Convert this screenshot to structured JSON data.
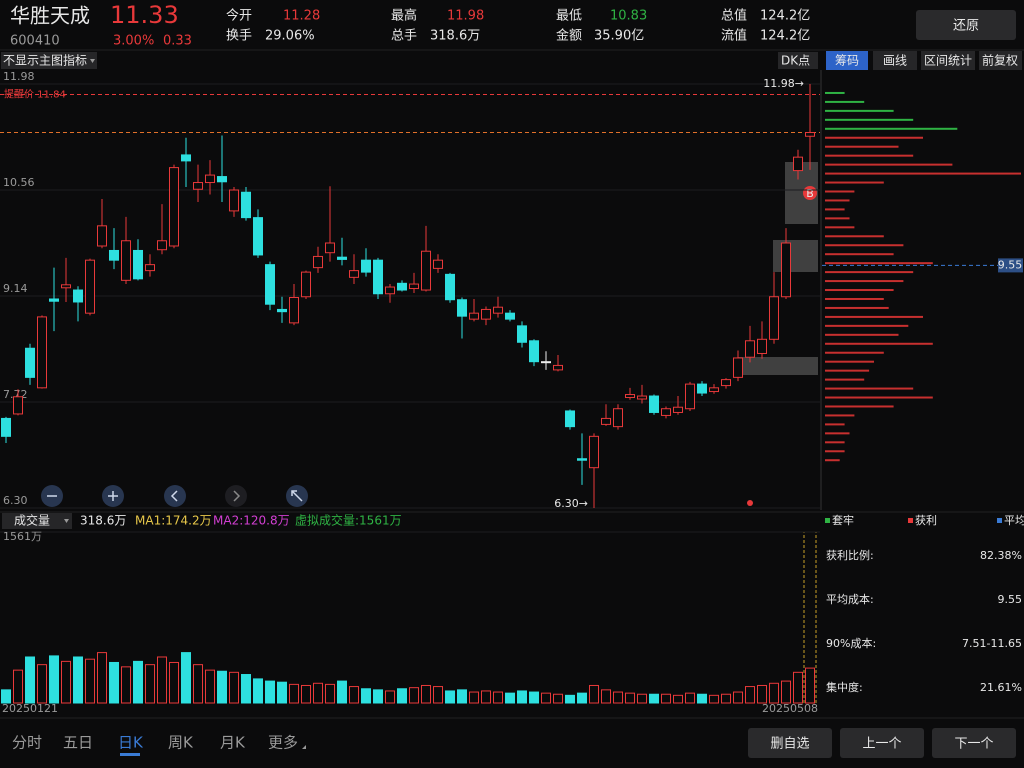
{
  "header": {
    "name": "华胜天成",
    "price": 11.33,
    "code": "600410",
    "change_pct": "3.00%",
    "change": 0.33,
    "reset_button": "还原",
    "stats": [
      {
        "label": "今开",
        "value": "11.28"
      },
      {
        "label": "换手",
        "value": "29.06%"
      },
      {
        "label": "最高",
        "value": "11.98"
      },
      {
        "label": "总手",
        "value": "318.6万"
      },
      {
        "label": "最低",
        "value": "10.83"
      },
      {
        "label": "金额",
        "value": "35.90亿"
      },
      {
        "label": "总值",
        "value": "124.2亿"
      },
      {
        "label": "流值",
        "value": "124.2亿"
      }
    ]
  },
  "toolbar": {
    "indicator": "不显示主图指标",
    "dk": "DK点",
    "tabs": [
      "筹码",
      "画线",
      "区间统计",
      "前复权"
    ]
  },
  "signal": "B",
  "chart_data": [
    {
      "type": "candlestick",
      "ylim": [
        6.3,
        11.98
      ],
      "yticks": [
        11.98,
        10.56,
        9.14,
        7.72,
        {
          "value": 6.3,
          "label": "6.30"
        }
      ],
      "alert": {
        "value": 11.84,
        "label": "提醒价 11.84"
      },
      "annotations": {
        "high": "11.98→",
        "low": "6.30→"
      },
      "open": [
        7.5,
        7.56,
        8.44,
        7.91,
        9.1,
        9.25,
        9.22,
        8.91,
        9.81,
        9.75,
        9.35,
        9.75,
        9.48,
        9.76,
        9.81,
        11.03,
        10.57,
        10.66,
        10.74,
        10.28,
        10.53,
        10.19,
        9.56,
        8.96,
        8.78,
        9.13,
        9.52,
        9.72,
        9.66,
        9.39,
        9.62,
        9.62,
        9.17,
        9.31,
        9.24,
        9.22,
        9.51,
        9.43,
        9.09,
        8.83,
        8.83,
        8.91,
        8.91,
        8.74,
        8.54,
        8.26,
        8.15,
        7.6,
        6.96,
        6.84,
        7.42,
        7.39,
        7.78,
        7.76,
        7.8,
        7.54,
        7.58,
        7.63,
        7.96,
        7.86,
        7.94,
        8.05,
        8.32,
        8.37,
        8.56,
        9.13,
        10.82,
        11.28
      ],
      "close": [
        7.26,
        7.79,
        8.05,
        8.86,
        9.07,
        9.29,
        9.06,
        9.62,
        10.08,
        9.62,
        9.88,
        9.37,
        9.56,
        9.88,
        10.86,
        10.95,
        10.66,
        10.76,
        10.67,
        10.56,
        10.19,
        9.69,
        9.03,
        8.93,
        9.12,
        9.46,
        9.67,
        9.85,
        9.63,
        9.48,
        9.46,
        9.17,
        9.26,
        9.22,
        9.3,
        9.74,
        9.62,
        9.09,
        8.87,
        8.91,
        8.96,
        8.99,
        8.83,
        8.52,
        8.26,
        8.26,
        8.21,
        7.39,
        6.94,
        7.26,
        7.5,
        7.63,
        7.82,
        7.8,
        7.58,
        7.63,
        7.65,
        7.96,
        7.84,
        7.91,
        8.02,
        8.31,
        8.54,
        8.56,
        9.13,
        9.85,
        11.0,
        11.33
      ],
      "high": [
        7.52,
        7.89,
        8.5,
        8.88,
        9.52,
        9.65,
        9.27,
        9.64,
        10.44,
        10.05,
        10.2,
        9.9,
        9.7,
        10.37,
        10.9,
        11.26,
        10.9,
        10.96,
        11.29,
        10.6,
        10.6,
        10.3,
        9.6,
        9.13,
        9.3,
        9.48,
        9.8,
        10.61,
        9.92,
        9.7,
        9.78,
        9.65,
        9.3,
        9.35,
        9.45,
        10.08,
        9.7,
        9.45,
        9.12,
        9.1,
        9.0,
        9.13,
        8.95,
        8.8,
        8.56,
        8.4,
        8.35,
        7.62,
        7.3,
        7.3,
        7.69,
        7.69,
        7.91,
        7.95,
        7.82,
        7.66,
        7.8,
        7.99,
        8.0,
        7.96,
        8.04,
        8.41,
        8.74,
        8.8,
        9.46,
        10.05,
        11.1,
        11.98
      ],
      "low": [
        7.17,
        7.54,
        7.95,
        7.9,
        8.67,
        9.06,
        8.8,
        8.88,
        9.78,
        9.5,
        9.3,
        9.35,
        9.4,
        9.7,
        9.78,
        10.6,
        10.4,
        10.5,
        10.4,
        10.2,
        10.15,
        9.65,
        8.95,
        8.78,
        8.75,
        9.1,
        9.45,
        9.6,
        9.55,
        9.3,
        9.4,
        9.1,
        9.05,
        9.2,
        9.18,
        9.2,
        9.45,
        9.05,
        8.57,
        8.8,
        8.75,
        8.85,
        8.8,
        8.45,
        8.2,
        8.15,
        8.13,
        7.35,
        6.61,
        6.3,
        7.4,
        7.35,
        7.75,
        7.7,
        7.55,
        7.5,
        7.55,
        7.6,
        7.8,
        7.83,
        7.9,
        8.0,
        8.25,
        8.3,
        8.5,
        9.1,
        10.7,
        10.83
      ]
    },
    {
      "type": "bar",
      "ylim": [
        0,
        1561
      ],
      "yticks": [
        {
          "value": 1561,
          "label": "1561万"
        }
      ],
      "categories": [
        "20250121",
        null,
        null,
        null,
        null,
        null,
        null,
        null,
        null,
        null,
        null,
        null,
        null,
        null,
        null,
        null,
        null,
        null,
        null,
        null,
        null,
        null,
        null,
        null,
        null,
        null,
        null,
        null,
        null,
        null,
        null,
        null,
        null,
        null,
        null,
        null,
        null,
        null,
        null,
        null,
        null,
        null,
        null,
        null,
        null,
        null,
        null,
        null,
        null,
        null,
        null,
        null,
        null,
        null,
        null,
        null,
        null,
        null,
        null,
        null,
        null,
        null,
        null,
        null,
        null,
        null,
        null,
        "20250508"
      ],
      "values": [
        120,
        300,
        420,
        350,
        430,
        380,
        420,
        400,
        460,
        370,
        330,
        380,
        350,
        420,
        370,
        460,
        350,
        300,
        290,
        280,
        260,
        220,
        200,
        190,
        170,
        160,
        180,
        170,
        200,
        150,
        130,
        120,
        110,
        130,
        140,
        160,
        150,
        110,
        120,
        100,
        110,
        100,
        90,
        110,
        100,
        90,
        80,
        70,
        90,
        160,
        120,
        100,
        90,
        80,
        80,
        80,
        70,
        90,
        80,
        70,
        80,
        100,
        150,
        160,
        180,
        200,
        280,
        318.6
      ]
    },
    {
      "type": "hbar",
      "avg": {
        "value": 9.55,
        "label": "9.55"
      },
      "prices": [
        11.86,
        11.74,
        11.62,
        11.5,
        11.38,
        11.26,
        11.14,
        11.02,
        10.9,
        10.78,
        10.66,
        10.54,
        10.42,
        10.3,
        10.18,
        10.06,
        9.94,
        9.82,
        9.7,
        9.58,
        9.46,
        9.34,
        9.22,
        9.1,
        8.98,
        8.86,
        8.74,
        8.62,
        8.5,
        8.38,
        8.26,
        8.14,
        8.02,
        7.9,
        7.78,
        7.66,
        7.54,
        7.42,
        7.3,
        7.18,
        7.06,
        6.94
      ],
      "values": [
        20,
        40,
        70,
        90,
        135,
        100,
        75,
        90,
        130,
        200,
        60,
        30,
        25,
        20,
        25,
        30,
        60,
        80,
        70,
        110,
        90,
        80,
        70,
        60,
        65,
        100,
        85,
        75,
        110,
        60,
        50,
        45,
        40,
        90,
        110,
        70,
        30,
        20,
        25,
        20,
        20,
        15
      ]
    }
  ],
  "volume_header": {
    "label": "成交量",
    "value": "318.6万",
    "ma1": "MA1:174.2万",
    "ma2": "MA2:120.8万",
    "virtual": "虚拟成交量:1561万"
  },
  "chip_panel": {
    "legend": [
      "套牢",
      "获利",
      "平均"
    ],
    "stats": [
      {
        "label": "获利比例:",
        "value": "82.38%"
      },
      {
        "label": "平均成本:",
        "value": "9.55"
      },
      {
        "label": "90%成本:",
        "value": "7.51-11.65"
      },
      {
        "label": "集中度:",
        "value": "21.61%"
      }
    ]
  },
  "period_tabs": [
    "分时",
    "五日",
    "日K",
    "周K",
    "月K",
    "更多"
  ],
  "actions": [
    "删自选",
    "上一个",
    "下一个"
  ]
}
